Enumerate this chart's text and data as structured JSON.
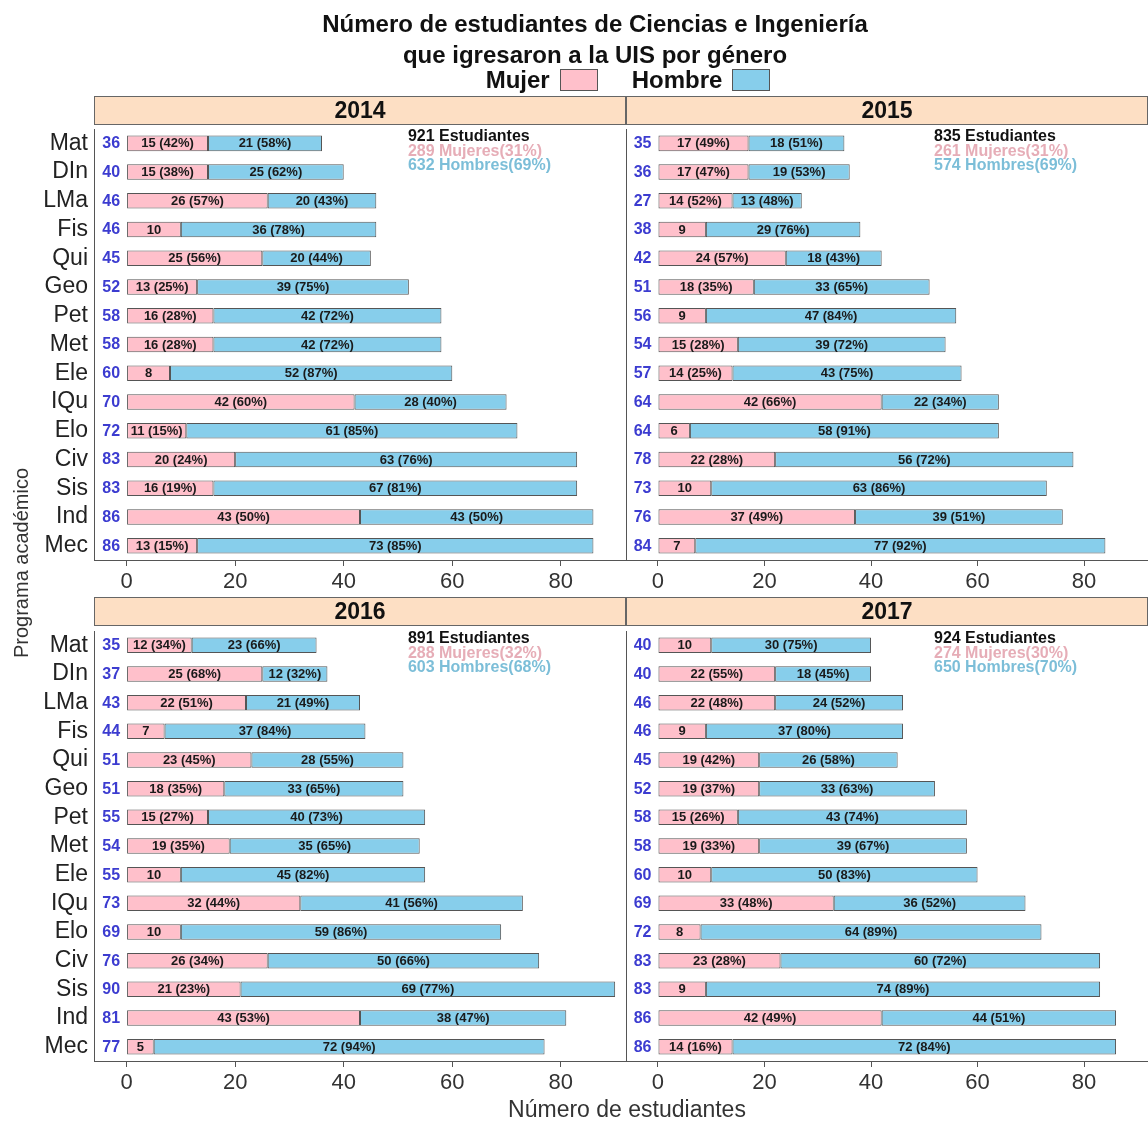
{
  "chart_data": [
    {
      "type": "other",
      "title": "Número de estudiantes de Ciencias e Ingeniería que igresaron a la UIS por género"
    },
    {
      "type": "bar",
      "title": "2014",
      "orientation": "horizontal",
      "stacked": true,
      "legend": "top",
      "ylabel": "Programa académico",
      "categories": [
        "Mat",
        "DIn",
        "LMa",
        "Fis",
        "Qui",
        "Geo",
        "Pet",
        "Met",
        "Ele",
        "IQu",
        "Elo",
        "Civ",
        "Sis",
        "Ind",
        "Mec"
      ],
      "series": [
        {
          "name": "Mujer",
          "color": "#ffc0cb",
          "values": [
            15,
            15,
            26,
            10,
            25,
            13,
            16,
            16,
            8,
            42,
            11,
            20,
            16,
            43,
            13
          ],
          "value_labels": [
            "15 (42%)",
            "15 (38%)",
            "26 (57%)",
            "10",
            "25 (56%)",
            "13 (25%)",
            "16 (28%)",
            "16 (28%)",
            "8",
            "42 (60%)",
            "11 (15%)",
            "20 (24%)",
            "16 (19%)",
            "43 (50%)",
            "13 (15%)"
          ]
        },
        {
          "name": "Hombre",
          "color": "#87ceeb",
          "values": [
            21,
            25,
            20,
            36,
            20,
            39,
            42,
            42,
            52,
            28,
            61,
            63,
            67,
            43,
            73
          ],
          "value_labels": [
            "21 (58%)",
            "25 (62%)",
            "20 (43%)",
            "36 (78%)",
            "20 (44%)",
            "39 (75%)",
            "42 (72%)",
            "42 (72%)",
            "52 (87%)",
            "28 (40%)",
            "61 (85%)",
            "63 (76%)",
            "67 (81%)",
            "43 (50%)",
            "73 (85%)"
          ]
        }
      ],
      "totals": [
        "36",
        "40",
        "46",
        "46",
        "45",
        "52",
        "58",
        "58",
        "60",
        "70",
        "72",
        "83",
        "83",
        "86",
        "86"
      ],
      "annotations": [
        "921 Estudiantes",
        "289 Mujeres(31%)",
        "632 Hombres(69%)"
      ],
      "xlim": [
        -6,
        92
      ],
      "xticks": [
        0,
        20,
        40,
        60,
        80
      ]
    },
    {
      "type": "bar",
      "title": "2015",
      "orientation": "horizontal",
      "stacked": true,
      "categories": [
        null,
        null,
        null,
        null,
        null,
        null,
        null,
        null,
        null,
        null,
        null,
        null,
        null,
        null,
        null
      ],
      "series": [
        {
          "color": "#ffc0cb",
          "values": [
            17,
            17,
            14,
            9,
            24,
            18,
            9,
            15,
            14,
            42,
            6,
            22,
            10,
            37,
            7
          ],
          "value_labels": [
            "17 (49%)",
            "17 (47%)",
            "14 (52%)",
            "9",
            "24 (57%)",
            "18 (35%)",
            "9",
            "15 (28%)",
            "14 (25%)",
            "42 (66%)",
            "6",
            "22 (28%)",
            "10",
            "37 (49%)",
            "7"
          ]
        },
        {
          "color": "#87ceeb",
          "values": [
            18,
            19,
            13,
            29,
            18,
            33,
            47,
            39,
            43,
            22,
            58,
            56,
            63,
            39,
            77
          ],
          "value_labels": [
            "18 (51%)",
            "19 (53%)",
            "13 (48%)",
            "29 (76%)",
            "18 (43%)",
            "33 (65%)",
            "47 (84%)",
            "39 (72%)",
            "43 (75%)",
            "22 (34%)",
            "58 (91%)",
            "56 (72%)",
            "63 (86%)",
            "39 (51%)",
            "77 (92%)"
          ]
        }
      ],
      "totals": [
        "35",
        "36",
        "27",
        "38",
        "42",
        "51",
        "56",
        "54",
        "57",
        "64",
        "64",
        "78",
        "73",
        "76",
        "84"
      ],
      "annotations": [
        "835 Estudiantes",
        "261 Mujeres(31%)",
        "574 Hombres(69%)"
      ],
      "xlim": [
        -6,
        92
      ],
      "xticks": [
        0,
        20,
        40,
        60,
        80
      ]
    },
    {
      "type": "bar",
      "title": "2016",
      "orientation": "horizontal",
      "stacked": true,
      "xlabel": "Número de estudiantes",
      "categories": [
        "Mat",
        "DIn",
        "LMa",
        "Fis",
        "Qui",
        "Geo",
        "Pet",
        "Met",
        "Ele",
        "IQu",
        "Elo",
        "Civ",
        "Sis",
        "Ind",
        "Mec"
      ],
      "series": [
        {
          "color": "#ffc0cb",
          "values": [
            12,
            25,
            22,
            7,
            23,
            18,
            15,
            19,
            10,
            32,
            10,
            26,
            21,
            43,
            5
          ],
          "value_labels": [
            "12 (34%)",
            "25 (68%)",
            "22 (51%)",
            "7",
            "23 (45%)",
            "18 (35%)",
            "15 (27%)",
            "19 (35%)",
            "10",
            "32 (44%)",
            "10",
            "26 (34%)",
            "21 (23%)",
            "43 (53%)",
            "5"
          ]
        },
        {
          "color": "#87ceeb",
          "values": [
            23,
            12,
            21,
            37,
            28,
            33,
            40,
            35,
            45,
            41,
            59,
            50,
            69,
            38,
            72
          ],
          "value_labels": [
            "23 (66%)",
            "12 (32%)",
            "21 (49%)",
            "37 (84%)",
            "28 (55%)",
            "33 (65%)",
            "40 (73%)",
            "35 (65%)",
            "45 (82%)",
            "41 (56%)",
            "59 (86%)",
            "50 (66%)",
            "69 (77%)",
            "38 (47%)",
            "72 (94%)"
          ]
        }
      ],
      "totals": [
        "35",
        "37",
        "43",
        "44",
        "51",
        "51",
        "55",
        "54",
        "55",
        "73",
        "69",
        "76",
        "90",
        "81",
        "77"
      ],
      "annotations": [
        "891 Estudiantes",
        "288 Mujeres(32%)",
        "603 Hombres(68%)"
      ],
      "xlim": [
        -6,
        92
      ],
      "xticks": [
        0,
        20,
        40,
        60,
        80
      ]
    },
    {
      "type": "bar",
      "title": "2017",
      "orientation": "horizontal",
      "stacked": true,
      "categories": [
        null,
        null,
        null,
        null,
        null,
        null,
        null,
        null,
        null,
        null,
        null,
        null,
        null,
        null,
        null
      ],
      "series": [
        {
          "color": "#ffc0cb",
          "values": [
            10,
            22,
            22,
            9,
            19,
            19,
            15,
            19,
            10,
            33,
            8,
            23,
            9,
            42,
            14
          ],
          "value_labels": [
            "10",
            "22 (55%)",
            "22 (48%)",
            "9",
            "19 (42%)",
            "19 (37%)",
            "15 (26%)",
            "19 (33%)",
            "10",
            "33 (48%)",
            "8",
            "23 (28%)",
            "9",
            "42 (49%)",
            "14 (16%)"
          ]
        },
        {
          "color": "#87ceeb",
          "values": [
            30,
            18,
            24,
            37,
            26,
            33,
            43,
            39,
            50,
            36,
            64,
            60,
            74,
            44,
            72
          ],
          "value_labels": [
            "30 (75%)",
            "18 (45%)",
            "24 (52%)",
            "37 (80%)",
            "26 (58%)",
            "33 (63%)",
            "43 (74%)",
            "39 (67%)",
            "50 (83%)",
            "36 (52%)",
            "64 (89%)",
            "60 (72%)",
            "74 (89%)",
            "44 (51%)",
            "72 (84%)"
          ]
        }
      ],
      "totals": [
        "40",
        "40",
        "46",
        "46",
        "45",
        "52",
        "58",
        "58",
        "60",
        "69",
        "72",
        "83",
        "83",
        "86",
        "86"
      ],
      "annotations": [
        "924 Estudiantes",
        "274 Mujeres(30%)",
        "650 Hombres(70%)"
      ],
      "xlim": [
        -6,
        92
      ],
      "xticks": [
        0,
        20,
        40,
        60,
        80
      ]
    }
  ]
}
